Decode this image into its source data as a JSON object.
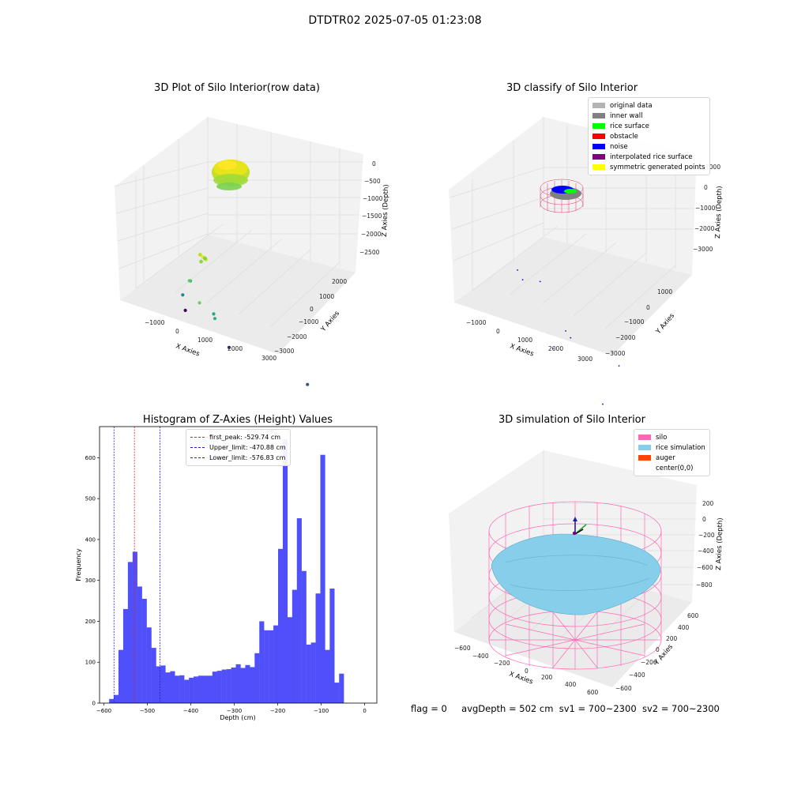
{
  "figure": {
    "suptitle": "DTDTR02 2025-07-05 01:23:08",
    "footer": {
      "flag": "flag = 0",
      "avg_depth": "avgDepth = 502 cm",
      "sv1": "sv1 = 700~2300",
      "sv2": "sv2 = 700~2300"
    }
  },
  "chart_data": [
    {
      "type": "scatter3d",
      "title": "3D Plot of Silo Interior(row data)",
      "xlabel": "X Axies",
      "ylabel": "Y Axies",
      "zlabel": "Z Axies (Depth)",
      "xticks": [
        "−1000",
        "0",
        "1000",
        "2000",
        "3000"
      ],
      "yticks": [
        "2000",
        "1000",
        "0",
        "−1000",
        "−2000",
        "−3000"
      ],
      "zticks": [
        "0",
        "−500",
        "−1000",
        "−1500",
        "−2000",
        "−2500"
      ],
      "colormap": "viridis",
      "points": [
        {
          "x": 0,
          "y": 0,
          "z": -500,
          "color": "#f1e51d"
        },
        {
          "x": 100,
          "y": 0,
          "z": -480,
          "color": "#e2e418"
        },
        {
          "x": -100,
          "y": 0,
          "z": -520,
          "color": "#bddf26"
        },
        {
          "x": 0,
          "y": 100,
          "z": -560,
          "color": "#8ed645"
        },
        {
          "x": 0,
          "y": -100,
          "z": -600,
          "color": "#7ad151"
        },
        {
          "x": 400,
          "y": 800,
          "z": -900,
          "color": "#6ccd5a"
        },
        {
          "x": -300,
          "y": 200,
          "z": -1300,
          "color": "#35b779"
        },
        {
          "x": -400,
          "y": 100,
          "z": -1450,
          "color": "#5ac864"
        },
        {
          "x": 600,
          "y": 300,
          "z": -1500,
          "color": "#2ab07f"
        },
        {
          "x": 300,
          "y": -100,
          "z": -1900,
          "color": "#22a884"
        },
        {
          "x": -500,
          "y": 300,
          "z": -1800,
          "color": "#26828e"
        },
        {
          "x": 3000,
          "y": 1000,
          "z": -2100,
          "color": "#3e4a89"
        },
        {
          "x": 3000,
          "y": 800,
          "z": -2300,
          "color": "#31688e"
        },
        {
          "x": -800,
          "y": -300,
          "z": -2900,
          "color": "#440154"
        },
        {
          "x": 500,
          "y": -600,
          "z": -3000,
          "color": "#482878"
        },
        {
          "x": 2600,
          "y": -1500,
          "z": -2800,
          "color": "#3b528b"
        }
      ]
    },
    {
      "type": "scatter3d",
      "title": "3D classify of Silo Interior",
      "xlabel": "X Axies",
      "ylabel": "Y Axies",
      "zlabel": "Z Axies (Depth)",
      "xticks": [
        "−1000",
        "0",
        "1000",
        "2000",
        "3000"
      ],
      "yticks": [
        "1000",
        "0",
        "−1000",
        "−2000",
        "−3000"
      ],
      "zticks": [
        "1000",
        "0",
        "−1000",
        "−2000",
        "−3000"
      ],
      "legend": {
        "position": "upper right",
        "items": [
          {
            "label": "original data",
            "color": "#b3b3b3"
          },
          {
            "label": "inner wall",
            "color": "#808080"
          },
          {
            "label": "rice surface",
            "color": "#00ff00"
          },
          {
            "label": "obstacle",
            "color": "#ff0000"
          },
          {
            "label": "noise",
            "color": "#0000ff"
          },
          {
            "label": "interpolated rice surface",
            "color": "#800080"
          },
          {
            "label": "symmetric generated points",
            "color": "#ffff00"
          }
        ]
      },
      "noise_points": [
        {
          "x": -700,
          "y": 0,
          "z": -1500
        },
        {
          "x": 1700,
          "y": 900,
          "z": -700
        },
        {
          "x": 2800,
          "y": 900,
          "z": -1600
        },
        {
          "x": -900,
          "y": -1500,
          "z": -3000
        },
        {
          "x": 300,
          "y": -1000,
          "z": -3000
        },
        {
          "x": 1800,
          "y": -1500,
          "z": -3000
        },
        {
          "x": 900,
          "y": 600,
          "z": -1900
        },
        {
          "x": -200,
          "y": 500,
          "z": -1000
        }
      ]
    },
    {
      "type": "bar",
      "title": "Histogram of Z-Axies (Height) Values",
      "xlabel": "Depth (cm)",
      "ylabel": "Frequency",
      "xlim": [
        -610,
        28
      ],
      "ylim": [
        0,
        676
      ],
      "xticks": [
        -600,
        -500,
        -400,
        -300,
        -200,
        -100,
        0
      ],
      "yticks": [
        0,
        100,
        200,
        300,
        400,
        500,
        600
      ],
      "bin_start": -588,
      "bin_width": 10.8,
      "bar_color": "#5050fb",
      "values": [
        10,
        20,
        130,
        230,
        345,
        370,
        285,
        255,
        185,
        135,
        90,
        92,
        75,
        78,
        67,
        68,
        57,
        62,
        65,
        67,
        67,
        67,
        77,
        79,
        82,
        83,
        87,
        95,
        86,
        93,
        88,
        122,
        200,
        178,
        178,
        190,
        377,
        645,
        210,
        277,
        452,
        323,
        143,
        148,
        268,
        607,
        130,
        280,
        50,
        72
      ],
      "vlines": [
        {
          "label": "first_peak: -529.74 cm",
          "x": -529.74,
          "color": "#e02020"
        },
        {
          "label": "Upper_limit: -470.88 cm",
          "x": -470.88,
          "color": "#2020c8"
        },
        {
          "label": "Lower_limit: -576.83 cm",
          "x": -576.83,
          "color": "#2020c8"
        }
      ],
      "legend_position": "upper center"
    },
    {
      "type": "surface3d",
      "title": "3D simulation of Silo Interior",
      "xlabel": "X Axies",
      "ylabel": "Y Axies",
      "zlabel": "Z Axies (Depth)",
      "xticks": [
        "−600",
        "−400",
        "−200",
        "0",
        "200",
        "400",
        "600"
      ],
      "yticks": [
        "600",
        "400",
        "200",
        "0",
        "−200",
        "−400",
        "−600"
      ],
      "zticks": [
        "200",
        "0",
        "−200",
        "−400",
        "−600",
        "−800"
      ],
      "legend": {
        "position": "upper right",
        "items": [
          {
            "label": "silo",
            "color": "#ff69b4"
          },
          {
            "label": "rice simulation",
            "color": "#87ceeb"
          },
          {
            "label": "auger",
            "color": "#ff4500"
          },
          {
            "label": "center(0,0)",
            "color": ""
          }
        ]
      }
    }
  ]
}
